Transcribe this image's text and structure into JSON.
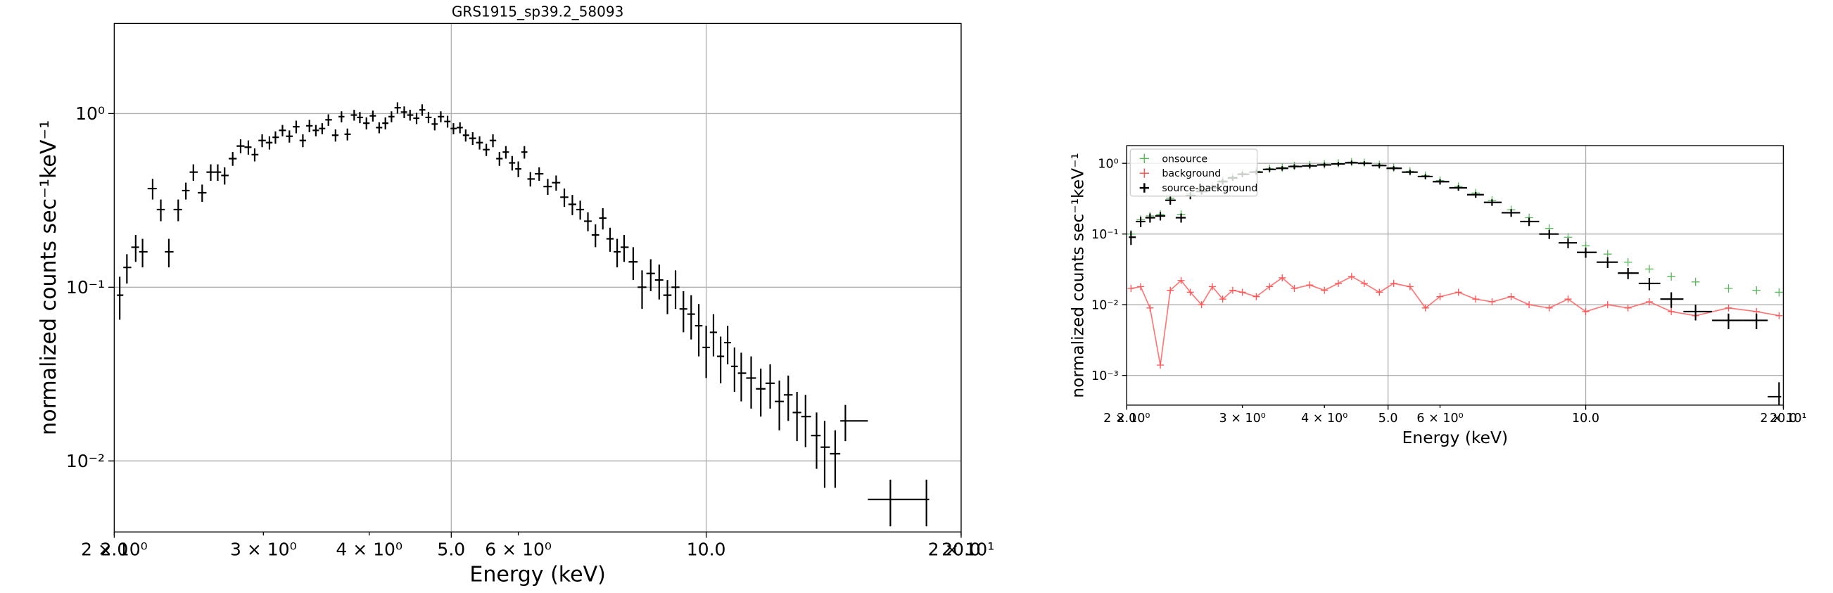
{
  "chart_data": [
    {
      "type": "errorbar",
      "title": "GRS1915_sp39.2_58093",
      "xlabel": "Energy (keV)",
      "ylabel": "normalized counts sec⁻¹keV⁻¹",
      "xscale": "log",
      "yscale": "log",
      "grid": true,
      "color": "#000000",
      "xlim": [
        2,
        20
      ],
      "ylim": [
        0.0039,
        3.3
      ],
      "xticks": [
        {
          "value": 2,
          "label": "2.0"
        },
        {
          "value": 5,
          "label": "5.0"
        },
        {
          "value": 10,
          "label": "10.0"
        },
        {
          "value": 20,
          "label": "20.0"
        }
      ],
      "xminor_ticks": [
        {
          "value": 2,
          "label": "2 × 10⁰"
        },
        {
          "value": 3,
          "label": "3 × 10⁰"
        },
        {
          "value": 4,
          "label": "4 × 10⁰"
        },
        {
          "value": 6,
          "label": "6 × 10⁰"
        },
        {
          "value": 20,
          "label": "2 × 10¹"
        }
      ],
      "yticks": [
        {
          "value": 0.01,
          "label": "10⁻²"
        },
        {
          "value": 0.1,
          "label": "10⁻¹"
        },
        {
          "value": 1,
          "label": "10⁰"
        }
      ],
      "x": [
        2.03,
        2.07,
        2.12,
        2.16,
        2.22,
        2.27,
        2.32,
        2.38,
        2.43,
        2.48,
        2.54,
        2.6,
        2.65,
        2.7,
        2.76,
        2.82,
        2.88,
        2.93,
        2.99,
        3.05,
        3.1,
        3.16,
        3.22,
        3.28,
        3.34,
        3.4,
        3.46,
        3.52,
        3.58,
        3.65,
        3.71,
        3.77,
        3.84,
        3.9,
        3.97,
        4.04,
        4.11,
        4.18,
        4.25,
        4.32,
        4.4,
        4.47,
        4.55,
        4.62,
        4.7,
        4.78,
        4.86,
        4.95,
        5.03,
        5.12,
        5.2,
        5.3,
        5.4,
        5.5,
        5.6,
        5.7,
        5.8,
        5.9,
        6.0,
        6.1,
        6.2,
        6.35,
        6.5,
        6.65,
        6.8,
        6.95,
        7.1,
        7.25,
        7.4,
        7.55,
        7.7,
        7.85,
        8.0,
        8.2,
        8.4,
        8.6,
        8.8,
        9.0,
        9.2,
        9.4,
        9.6,
        9.8,
        10.0,
        10.2,
        10.4,
        10.6,
        10.8,
        11.0,
        11.3,
        11.6,
        11.9,
        12.2,
        12.5,
        12.8,
        13.1,
        13.5,
        13.8,
        14.2,
        14.6,
        16.5,
        18.2
      ],
      "values": [
        0.09,
        0.13,
        0.17,
        0.16,
        0.37,
        0.28,
        0.16,
        0.28,
        0.36,
        0.46,
        0.35,
        0.46,
        0.46,
        0.44,
        0.55,
        0.65,
        0.64,
        0.58,
        0.7,
        0.68,
        0.73,
        0.8,
        0.74,
        0.84,
        0.7,
        0.85,
        0.8,
        0.82,
        0.92,
        0.75,
        0.96,
        0.76,
        0.98,
        0.95,
        0.88,
        0.97,
        0.83,
        0.88,
        0.96,
        1.08,
        1.02,
        0.98,
        0.94,
        1.05,
        0.95,
        0.87,
        0.96,
        0.9,
        0.82,
        0.83,
        0.75,
        0.72,
        0.68,
        0.62,
        0.7,
        0.55,
        0.6,
        0.52,
        0.48,
        0.6,
        0.42,
        0.45,
        0.38,
        0.4,
        0.33,
        0.3,
        0.28,
        0.24,
        0.2,
        0.25,
        0.19,
        0.16,
        0.17,
        0.14,
        0.1,
        0.12,
        0.11,
        0.09,
        0.1,
        0.075,
        0.07,
        0.06,
        0.045,
        0.055,
        0.04,
        0.048,
        0.035,
        0.032,
        0.03,
        0.026,
        0.028,
        0.022,
        0.024,
        0.019,
        0.018,
        0.014,
        0.012,
        0.011,
        0.017,
        0.006,
        0.006
      ],
      "errors": [
        0.025,
        0.025,
        0.03,
        0.03,
        0.05,
        0.04,
        0.03,
        0.04,
        0.04,
        0.05,
        0.04,
        0.05,
        0.05,
        0.05,
        0.05,
        0.06,
        0.06,
        0.05,
        0.06,
        0.06,
        0.06,
        0.06,
        0.06,
        0.07,
        0.06,
        0.07,
        0.06,
        0.06,
        0.07,
        0.06,
        0.07,
        0.06,
        0.07,
        0.07,
        0.07,
        0.07,
        0.06,
        0.07,
        0.07,
        0.08,
        0.08,
        0.07,
        0.07,
        0.08,
        0.07,
        0.07,
        0.07,
        0.07,
        0.06,
        0.06,
        0.06,
        0.06,
        0.06,
        0.05,
        0.06,
        0.05,
        0.05,
        0.05,
        0.05,
        0.05,
        0.04,
        0.04,
        0.04,
        0.04,
        0.04,
        0.04,
        0.035,
        0.03,
        0.03,
        0.035,
        0.03,
        0.03,
        0.03,
        0.03,
        0.025,
        0.025,
        0.025,
        0.02,
        0.025,
        0.02,
        0.02,
        0.02,
        0.015,
        0.015,
        0.012,
        0.012,
        0.01,
        0.01,
        0.01,
        0.008,
        0.008,
        0.007,
        0.007,
        0.006,
        0.006,
        0.005,
        0.005,
        0.004,
        0.004,
        0.0018,
        0.0018
      ]
    },
    {
      "type": "multi",
      "xlabel": "Energy (keV)",
      "ylabel": "normalized counts sec⁻¹keV⁻¹",
      "xscale": "log",
      "yscale": "log",
      "grid": true,
      "legend": "upper left",
      "xlim": [
        2,
        20
      ],
      "ylim": [
        0.00038,
        1.78
      ],
      "xticks": [
        {
          "value": 2,
          "label": "2.0"
        },
        {
          "value": 5,
          "label": "5.0"
        },
        {
          "value": 10,
          "label": "10.0"
        },
        {
          "value": 20,
          "label": "20.0"
        }
      ],
      "xminor_ticks": [
        {
          "value": 2,
          "label": "2 × 10⁰"
        },
        {
          "value": 3,
          "label": "3 × 10⁰"
        },
        {
          "value": 4,
          "label": "4 × 10⁰"
        },
        {
          "value": 6,
          "label": "6 × 10⁰"
        },
        {
          "value": 20,
          "label": "2 × 10¹"
        }
      ],
      "yticks": [
        {
          "value": 0.001,
          "label": "10⁻³"
        },
        {
          "value": 0.01,
          "label": "10⁻²"
        },
        {
          "value": 0.1,
          "label": "10⁻¹"
        },
        {
          "value": 1,
          "label": "10⁰"
        }
      ],
      "x": [
        2.03,
        2.1,
        2.17,
        2.25,
        2.33,
        2.42,
        2.5,
        2.6,
        2.7,
        2.8,
        2.9,
        3.0,
        3.15,
        3.3,
        3.45,
        3.6,
        3.8,
        4.0,
        4.2,
        4.4,
        4.6,
        4.85,
        5.1,
        5.4,
        5.7,
        6.0,
        6.4,
        6.8,
        7.2,
        7.7,
        8.2,
        8.8,
        9.4,
        10.0,
        10.8,
        11.6,
        12.5,
        13.5,
        14.7,
        16.5,
        18.2,
        19.7
      ],
      "series": [
        {
          "name": "onsource",
          "color": "#5cb85c",
          "style": "marker",
          "values": [
            0.1,
            0.16,
            0.18,
            0.19,
            0.32,
            0.19,
            0.37,
            0.42,
            0.47,
            0.57,
            0.64,
            0.72,
            0.77,
            0.84,
            0.87,
            0.92,
            0.94,
            0.97,
            1.0,
            1.04,
            1.02,
            0.95,
            0.87,
            0.77,
            0.67,
            0.57,
            0.47,
            0.38,
            0.3,
            0.22,
            0.17,
            0.12,
            0.09,
            0.068,
            0.052,
            0.04,
            0.032,
            0.025,
            0.021,
            0.017,
            0.016,
            0.015
          ]
        },
        {
          "name": "background",
          "color": "#ff5555",
          "style": "line",
          "values": [
            0.017,
            0.018,
            0.009,
            0.0014,
            0.016,
            0.022,
            0.015,
            0.01,
            0.018,
            0.012,
            0.016,
            0.015,
            0.013,
            0.018,
            0.024,
            0.017,
            0.019,
            0.016,
            0.02,
            0.025,
            0.02,
            0.015,
            0.02,
            0.018,
            0.009,
            0.013,
            0.015,
            0.012,
            0.011,
            0.013,
            0.01,
            0.009,
            0.012,
            0.008,
            0.01,
            0.009,
            0.011,
            0.008,
            0.007,
            0.009,
            0.008,
            0.007
          ]
        },
        {
          "name": "source-background",
          "color": "#000000",
          "style": "errorbar",
          "values": [
            0.09,
            0.15,
            0.17,
            0.18,
            0.3,
            0.17,
            0.35,
            0.4,
            0.45,
            0.55,
            0.62,
            0.7,
            0.75,
            0.82,
            0.85,
            0.9,
            0.92,
            0.95,
            0.98,
            1.02,
            1.0,
            0.93,
            0.85,
            0.75,
            0.65,
            0.55,
            0.45,
            0.36,
            0.28,
            0.2,
            0.15,
            0.1,
            0.075,
            0.055,
            0.04,
            0.028,
            0.02,
            0.012,
            0.008,
            0.006,
            0.006,
            0.0005
          ],
          "errors": [
            0.02,
            0.025,
            0.025,
            0.025,
            0.04,
            0.025,
            0.04,
            0.04,
            0.045,
            0.05,
            0.05,
            0.06,
            0.06,
            0.06,
            0.06,
            0.07,
            0.07,
            0.07,
            0.07,
            0.07,
            0.07,
            0.07,
            0.06,
            0.06,
            0.05,
            0.05,
            0.04,
            0.035,
            0.03,
            0.025,
            0.02,
            0.015,
            0.012,
            0.009,
            0.007,
            0.005,
            0.004,
            0.003,
            0.002,
            0.0015,
            0.0015,
            0.0003
          ]
        }
      ]
    }
  ]
}
